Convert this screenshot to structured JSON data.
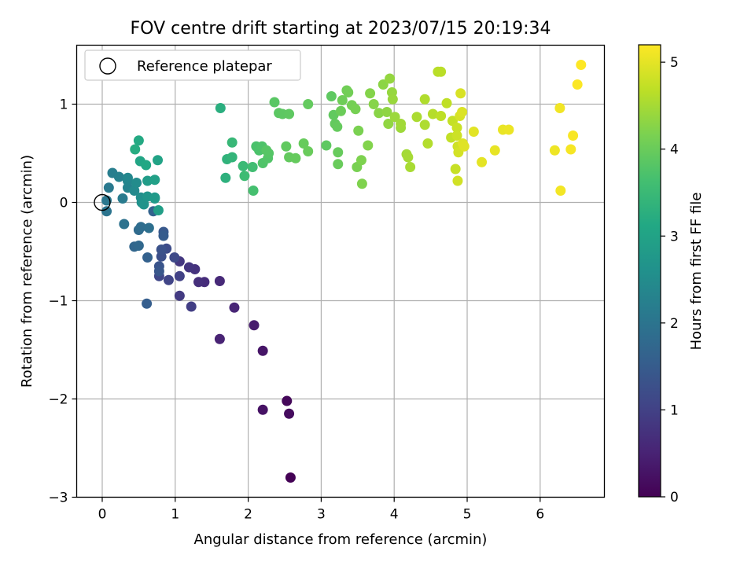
{
  "chart_data": {
    "type": "scatter",
    "title": "FOV centre drift starting at 2023/07/15 20:19:34",
    "xlabel": "Angular distance from reference (arcmin)",
    "ylabel": "Rotation from reference (arcmin)",
    "xlim": [
      -0.35,
      6.88
    ],
    "ylim": [
      -3.0,
      1.6
    ],
    "xticks": [
      0,
      1,
      2,
      3,
      4,
      5,
      6
    ],
    "yticks": [
      -3,
      -2,
      -1,
      0,
      1
    ],
    "xtick_labels": [
      "0",
      "1",
      "2",
      "3",
      "4",
      "5",
      "6"
    ],
    "ytick_labels": [
      "−3",
      "−2",
      "−1",
      "0",
      "1"
    ],
    "grid": true,
    "legend": {
      "position": "top-left",
      "entries": [
        "Reference platepar"
      ]
    },
    "reference_point": {
      "x": 0,
      "y": 0
    },
    "colorbar": {
      "label": "Hours from first FF file",
      "range": [
        0,
        5.2
      ],
      "ticks": [
        0,
        1,
        2,
        3,
        4,
        5
      ],
      "tick_labels": [
        "0",
        "1",
        "2",
        "3",
        "4",
        "5"
      ],
      "colormap": "viridis"
    },
    "points": [
      [
        2.58,
        -2.8,
        0.02
      ],
      [
        2.53,
        -2.02,
        0.1
      ],
      [
        2.56,
        -2.15,
        0.15
      ],
      [
        2.2,
        -2.11,
        0.25
      ],
      [
        2.2,
        -1.51,
        0.3
      ],
      [
        2.08,
        -1.25,
        0.4
      ],
      [
        1.61,
        -1.39,
        0.5
      ],
      [
        1.81,
        -1.07,
        0.55
      ],
      [
        1.61,
        -0.8,
        0.6
      ],
      [
        1.4,
        -0.81,
        0.65
      ],
      [
        1.32,
        -0.81,
        0.7
      ],
      [
        1.27,
        -0.68,
        0.75
      ],
      [
        1.19,
        -0.66,
        0.8
      ],
      [
        1.06,
        -0.6,
        0.85
      ],
      [
        1.06,
        -0.95,
        0.9
      ],
      [
        1.22,
        -1.06,
        0.95
      ],
      [
        1.06,
        -0.75,
        1.0
      ],
      [
        0.91,
        -0.79,
        1.05
      ],
      [
        0.78,
        -0.75,
        1.1
      ],
      [
        0.99,
        -0.56,
        1.15
      ],
      [
        0.88,
        -0.47,
        1.2
      ],
      [
        0.81,
        -0.55,
        1.25
      ],
      [
        0.81,
        -0.48,
        1.3
      ],
      [
        0.78,
        -0.65,
        1.35
      ],
      [
        0.78,
        -0.7,
        1.4
      ],
      [
        0.84,
        -0.3,
        1.45
      ],
      [
        0.84,
        -0.34,
        1.5
      ],
      [
        0.61,
        -1.03,
        1.55
      ],
      [
        0.62,
        -0.56,
        1.6
      ],
      [
        0.7,
        -0.09,
        1.65
      ],
      [
        0.44,
        -0.45,
        1.7
      ],
      [
        0.5,
        -0.44,
        1.75
      ],
      [
        0.5,
        -0.28,
        1.8
      ],
      [
        0.53,
        -0.25,
        1.85
      ],
      [
        0.64,
        -0.26,
        1.9
      ],
      [
        0.3,
        -0.22,
        1.95
      ],
      [
        0.06,
        -0.09,
        2.0
      ],
      [
        0.06,
        0.02,
        2.05
      ],
      [
        0.09,
        0.15,
        2.1
      ],
      [
        0.28,
        0.04,
        2.15
      ],
      [
        0.14,
        0.3,
        2.2
      ],
      [
        0.23,
        0.26,
        2.25
      ],
      [
        0.35,
        0.15,
        2.3
      ],
      [
        0.35,
        0.22,
        2.35
      ],
      [
        0.35,
        0.25,
        2.4
      ],
      [
        0.44,
        0.12,
        2.45
      ],
      [
        0.47,
        0.2,
        2.5
      ],
      [
        0.53,
        0.05,
        2.55
      ],
      [
        0.54,
        0.0,
        2.6
      ],
      [
        0.57,
        -0.02,
        2.65
      ],
      [
        0.62,
        0.06,
        2.7
      ],
      [
        0.72,
        0.05,
        2.75
      ],
      [
        0.72,
        0.04,
        2.8
      ],
      [
        0.62,
        0.22,
        2.85
      ],
      [
        0.77,
        -0.08,
        2.9
      ],
      [
        0.72,
        0.23,
        2.95
      ],
      [
        0.76,
        0.43,
        3.0
      ],
      [
        0.52,
        0.42,
        3.05
      ],
      [
        0.6,
        0.38,
        3.1
      ],
      [
        0.5,
        0.63,
        3.15
      ],
      [
        0.45,
        0.54,
        3.2
      ],
      [
        1.62,
        0.96,
        3.25
      ],
      [
        1.69,
        0.25,
        3.3
      ],
      [
        1.71,
        0.44,
        3.35
      ],
      [
        1.78,
        0.46,
        3.4
      ],
      [
        1.78,
        0.61,
        3.45
      ],
      [
        1.93,
        0.37,
        3.5
      ],
      [
        1.95,
        0.27,
        3.55
      ],
      [
        2.06,
        0.36,
        3.6
      ],
      [
        2.07,
        0.12,
        3.65
      ],
      [
        2.11,
        0.57,
        3.7
      ],
      [
        2.15,
        0.53,
        3.72
      ],
      [
        2.19,
        0.57,
        3.74
      ],
      [
        2.2,
        0.4,
        3.76
      ],
      [
        2.27,
        0.45,
        3.78
      ],
      [
        2.28,
        0.5,
        3.8
      ],
      [
        2.25,
        0.53,
        3.82
      ],
      [
        2.36,
        1.02,
        3.84
      ],
      [
        2.42,
        0.91,
        3.86
      ],
      [
        2.47,
        0.9,
        3.88
      ],
      [
        2.56,
        0.9,
        3.9
      ],
      [
        2.52,
        0.57,
        3.92
      ],
      [
        2.56,
        0.46,
        3.94
      ],
      [
        2.65,
        0.45,
        3.96
      ],
      [
        2.76,
        0.6,
        3.98
      ],
      [
        2.82,
        0.52,
        4.0
      ],
      [
        2.82,
        1.0,
        3.95
      ],
      [
        3.07,
        0.58,
        3.9
      ],
      [
        3.14,
        1.08,
        3.9
      ],
      [
        3.17,
        0.89,
        3.92
      ],
      [
        3.19,
        0.8,
        3.94
      ],
      [
        3.22,
        0.77,
        3.96
      ],
      [
        3.23,
        0.51,
        3.98
      ],
      [
        3.23,
        0.39,
        4.0
      ],
      [
        3.27,
        0.93,
        4.02
      ],
      [
        3.29,
        1.04,
        4.04
      ],
      [
        3.35,
        1.14,
        4.06
      ],
      [
        3.37,
        1.12,
        4.08
      ],
      [
        3.42,
        0.99,
        4.1
      ],
      [
        3.47,
        0.95,
        4.12
      ],
      [
        3.49,
        0.36,
        4.14
      ],
      [
        3.51,
        0.73,
        4.16
      ],
      [
        3.55,
        0.43,
        4.18
      ],
      [
        3.56,
        0.19,
        4.2
      ],
      [
        3.64,
        0.58,
        4.22
      ],
      [
        3.67,
        1.11,
        4.24
      ],
      [
        3.72,
        1.0,
        4.26
      ],
      [
        3.79,
        0.91,
        4.28
      ],
      [
        3.85,
        1.2,
        4.3
      ],
      [
        3.9,
        0.92,
        4.32
      ],
      [
        3.92,
        0.8,
        4.34
      ],
      [
        3.94,
        1.26,
        4.36
      ],
      [
        3.97,
        1.12,
        4.38
      ],
      [
        3.98,
        1.05,
        4.4
      ],
      [
        4.01,
        0.87,
        4.42
      ],
      [
        4.09,
        0.76,
        4.44
      ],
      [
        4.09,
        0.8,
        4.46
      ],
      [
        4.17,
        0.49,
        4.48
      ],
      [
        4.19,
        0.46,
        4.5
      ],
      [
        4.22,
        0.36,
        4.52
      ],
      [
        4.31,
        0.87,
        4.54
      ],
      [
        4.42,
        0.79,
        4.56
      ],
      [
        4.42,
        1.05,
        4.58
      ],
      [
        4.46,
        0.6,
        4.6
      ],
      [
        4.53,
        0.9,
        4.62
      ],
      [
        4.6,
        1.33,
        4.64
      ],
      [
        4.64,
        1.33,
        4.66
      ],
      [
        4.64,
        0.88,
        4.68
      ],
      [
        4.72,
        1.01,
        4.7
      ],
      [
        4.78,
        0.66,
        4.72
      ],
      [
        4.8,
        0.83,
        4.74
      ],
      [
        4.84,
        0.34,
        4.76
      ],
      [
        4.86,
        0.76,
        4.78
      ],
      [
        4.86,
        0.68,
        4.8
      ],
      [
        4.87,
        0.57,
        4.82
      ],
      [
        4.87,
        0.22,
        4.84
      ],
      [
        4.88,
        0.51,
        4.86
      ],
      [
        4.9,
        0.88,
        4.88
      ],
      [
        4.91,
        1.11,
        4.9
      ],
      [
        4.93,
        0.92,
        4.92
      ],
      [
        4.94,
        0.6,
        4.94
      ],
      [
        4.96,
        0.57,
        4.96
      ],
      [
        5.09,
        0.72,
        4.98
      ],
      [
        5.2,
        0.41,
        5.0
      ],
      [
        5.38,
        0.53,
        5.02
      ],
      [
        5.49,
        0.74,
        5.04
      ],
      [
        5.57,
        0.74,
        5.06
      ],
      [
        6.2,
        0.53,
        5.08
      ],
      [
        6.27,
        0.96,
        5.1
      ],
      [
        6.28,
        0.12,
        5.12
      ],
      [
        6.42,
        0.54,
        5.14
      ],
      [
        6.45,
        0.68,
        5.16
      ],
      [
        6.51,
        1.2,
        5.18
      ],
      [
        6.56,
        1.4,
        5.2
      ]
    ]
  }
}
